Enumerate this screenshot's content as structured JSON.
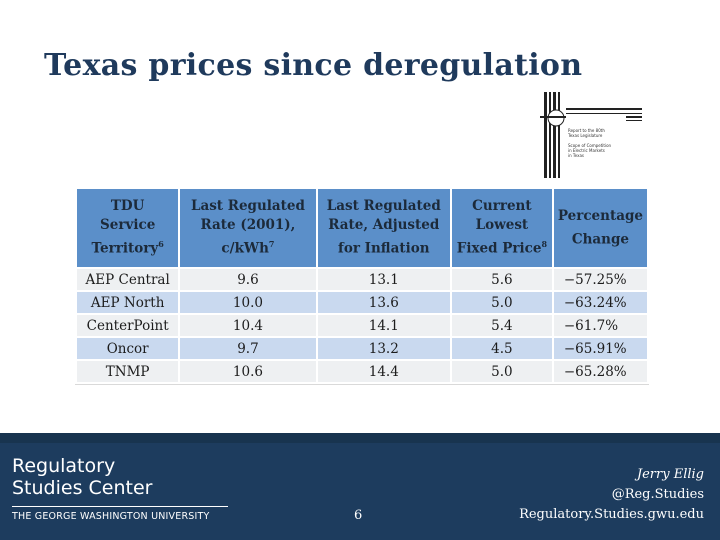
{
  "slide": {
    "title": "Texas prices since deregulation",
    "page_number": "6"
  },
  "report_cover": {
    "lines_a": [
      "Report to the 80th",
      "Texas Legislature"
    ],
    "lines_b": [
      "Scope of Competition",
      "in Electric Markets",
      "in Texas"
    ]
  },
  "table": {
    "headers": [
      {
        "text": "TDU Service Territory",
        "sup": "6"
      },
      {
        "text": "Last Regulated Rate (2001), c/kWh",
        "sup": "7"
      },
      {
        "text": "Last Regulated Rate, Adjusted for Inflation",
        "sup": ""
      },
      {
        "text": "Current Lowest Fixed Price",
        "sup": "8"
      },
      {
        "text": "Percentage Change",
        "sup": ""
      }
    ],
    "rows": [
      {
        "territory": "AEP Central",
        "rate_2001": "9.6",
        "rate_adjusted": "13.1",
        "current_price": "5.6",
        "pct_change": "−57.25%"
      },
      {
        "territory": "AEP North",
        "rate_2001": "10.0",
        "rate_adjusted": "13.6",
        "current_price": "5.0",
        "pct_change": "−63.24%"
      },
      {
        "territory": "CenterPoint",
        "rate_2001": "10.4",
        "rate_adjusted": "14.1",
        "current_price": "5.4",
        "pct_change": "−61.7%"
      },
      {
        "territory": "Oncor",
        "rate_2001": "9.7",
        "rate_adjusted": "13.2",
        "current_price": "4.5",
        "pct_change": "−65.91%"
      },
      {
        "territory": "TNMP",
        "rate_2001": "10.6",
        "rate_adjusted": "14.4",
        "current_price": "5.0",
        "pct_change": "−65.28%"
      }
    ]
  },
  "footer": {
    "org_line1": "Regulatory",
    "org_line2": "Studies Center",
    "university": "THE GEORGE WASHINGTON UNIVERSITY",
    "author": "Jerry Ellig",
    "handle": "@Reg.Studies",
    "website": "Regulatory.Studies.gwu.edu"
  },
  "colors": {
    "title": "#1f3a5c",
    "header_fill": "#5b8fc9",
    "row_light": "#eef0f2",
    "row_blue": "#c9d9ef",
    "footer": "#1d3c5e"
  }
}
